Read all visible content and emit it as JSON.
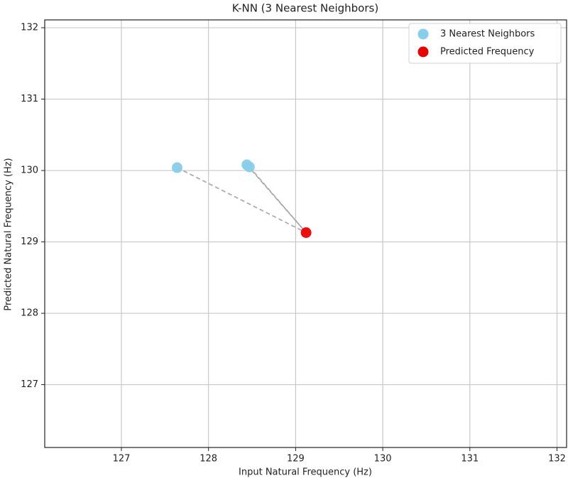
{
  "chart_data": {
    "type": "scatter",
    "title": "K-NN (3 Nearest Neighbors)",
    "xlabel": "Input Natural Frequency (Hz)",
    "ylabel": "Predicted Natural Frequency (Hz)",
    "series": [
      {
        "name": "3 Nearest Neighbors",
        "color": "#87ceeb",
        "x": [
          127.64,
          128.44,
          128.47
        ],
        "values": [
          130.04,
          130.08,
          130.05
        ]
      },
      {
        "name": "Predicted Frequency",
        "color": "#ee0000",
        "x": [
          129.12
        ],
        "values": [
          129.13
        ]
      }
    ],
    "connector_style": "dashed",
    "xlim": [
      126.12,
      132.11
    ],
    "ylim": [
      126.12,
      132.11
    ],
    "xticks": [
      127,
      128,
      129,
      130,
      131,
      132
    ],
    "yticks": [
      127,
      128,
      129,
      130,
      131,
      132
    ],
    "grid": true,
    "legend": "upper right"
  }
}
